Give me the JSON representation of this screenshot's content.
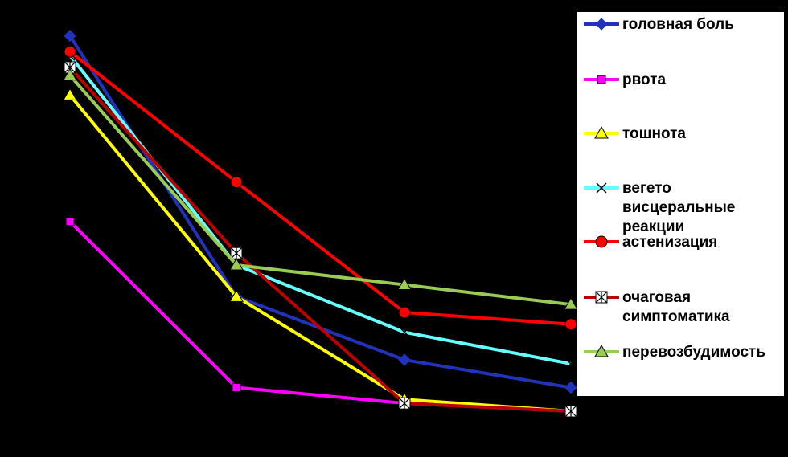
{
  "chart_data": {
    "type": "line",
    "categories": [
      "",
      "",
      "",
      ""
    ],
    "ylim": [
      0,
      100
    ],
    "grid": false,
    "legend_placement": "right",
    "series": [
      {
        "name": "головная боль",
        "color": "#2233bb",
        "marker": "diamond",
        "values": [
          95,
          29,
          13,
          6
        ]
      },
      {
        "name": "рвота",
        "color": "#ff00ff",
        "marker": "square",
        "values": [
          48,
          6,
          2,
          0
        ]
      },
      {
        "name": "тошнота",
        "color": "#ffff00",
        "marker": "triangle",
        "values": [
          80,
          29,
          3,
          0
        ]
      },
      {
        "name": "вегето висцеральные реакции",
        "color": "#66ffff",
        "marker": "x",
        "values": [
          90,
          37,
          20,
          12
        ]
      },
      {
        "name": "астенизация",
        "color": "#ff0000",
        "marker": "circle",
        "values": [
          91,
          58,
          25,
          22
        ]
      },
      {
        "name": "очаговая симптоматика",
        "color": "#bb0000",
        "marker": "star",
        "values": [
          87,
          40,
          2,
          0
        ]
      },
      {
        "name": "перевозбудимость",
        "color": "#99cc55",
        "marker": "triangle",
        "values": [
          85,
          37,
          32,
          27
        ]
      }
    ],
    "legend_lines": [
      [
        "головная боль"
      ],
      [
        "рвота"
      ],
      [
        "тошнота"
      ],
      [
        "вегето",
        "висцеральные",
        "реакции"
      ],
      [
        "астенизация"
      ],
      [
        "очаговая",
        "симптоматика"
      ],
      [
        "перевозбудимость"
      ]
    ]
  }
}
